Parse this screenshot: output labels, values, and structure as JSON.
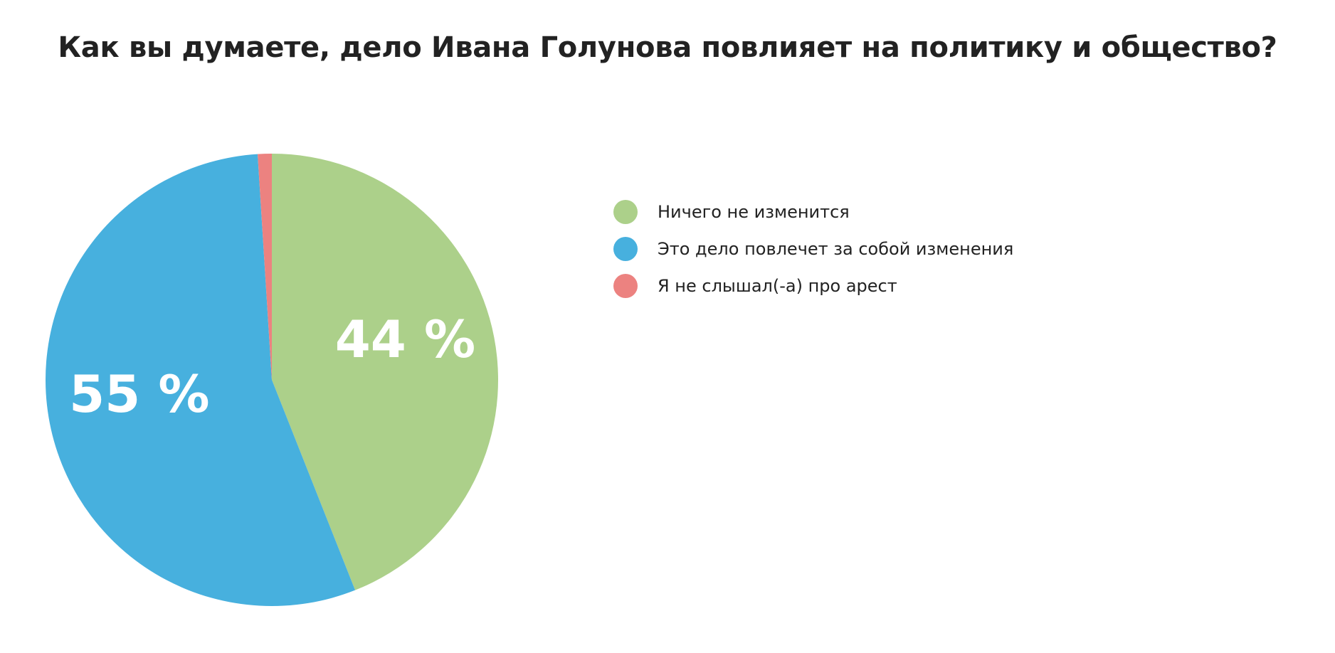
{
  "chart_data": {
    "type": "pie",
    "title": "Как вы думаете, дело Ивана Голунова повлияет на политику и общество?",
    "categories": [
      "Ничего не изменится",
      "Это дело повлечет за собой изменения",
      "Я не слышал(-а) про арест"
    ],
    "values": [
      44,
      55,
      1
    ],
    "data_labels": [
      "44 %",
      "55 %",
      ""
    ],
    "colors": [
      "#acd08a",
      "#47b0de",
      "#ec8280"
    ],
    "legend_placement": "right"
  }
}
